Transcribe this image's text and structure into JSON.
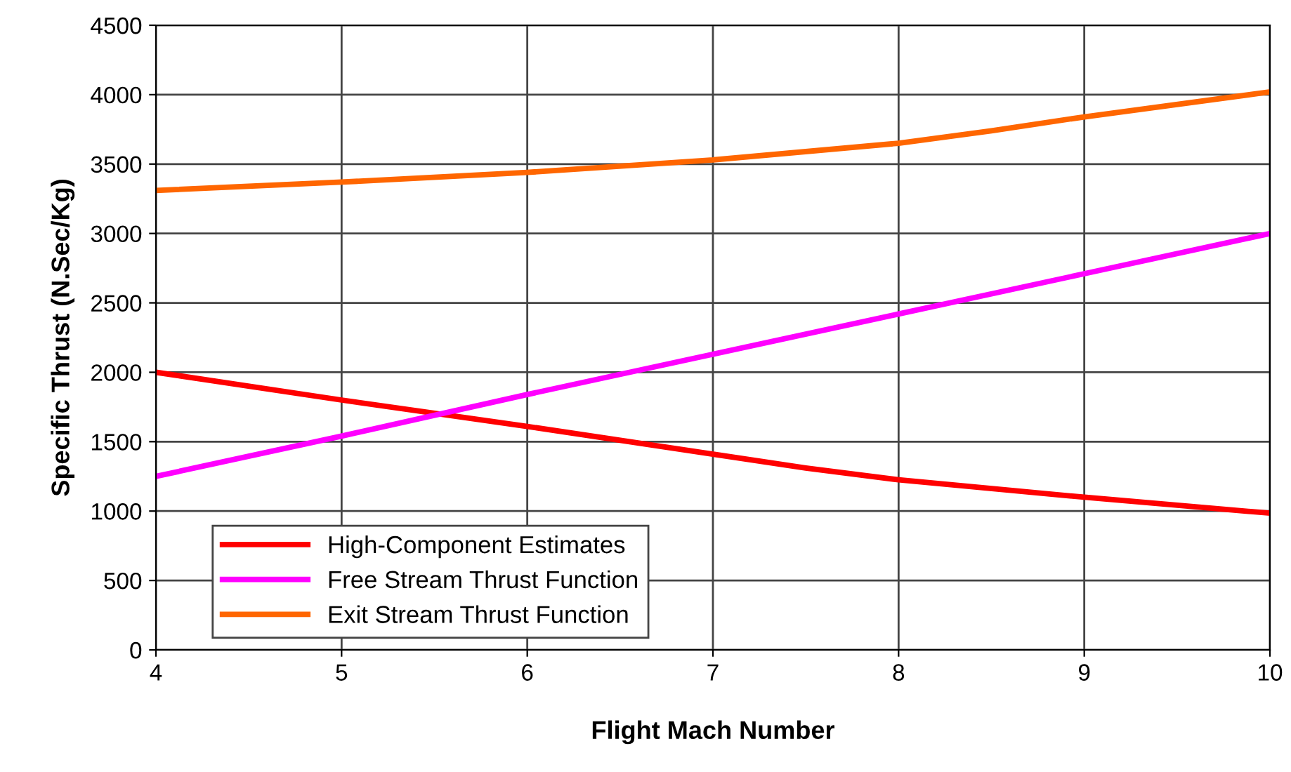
{
  "chart_data": {
    "type": "line",
    "xlabel": "Flight Mach Number",
    "ylabel": "Specific Thrust (N.Sec/Kg)",
    "series": [
      {
        "name": "High-Component Estimates",
        "color": "#ff0000",
        "x": [
          4,
          5,
          6,
          7,
          7.5,
          8,
          9,
          10
        ],
        "values": [
          2000,
          1800,
          1610,
          1410,
          1310,
          1225,
          1100,
          985
        ]
      },
      {
        "name": "Free Stream Thrust Function",
        "color": "#ff00ff",
        "x": [
          4,
          5,
          6,
          7,
          8,
          9,
          10
        ],
        "values": [
          1250,
          1540,
          1840,
          2130,
          2420,
          2710,
          3000
        ]
      },
      {
        "name": "Exit Stream Thrust Function",
        "color": "#ff6600",
        "x": [
          4,
          5,
          6,
          7,
          8,
          8.5,
          9,
          10
        ],
        "values": [
          3310,
          3370,
          3440,
          3530,
          3650,
          3740,
          3840,
          4020
        ]
      }
    ],
    "xlim": [
      4,
      10
    ],
    "xticks": [
      4,
      5,
      6,
      7,
      8,
      9,
      10
    ],
    "ylim": [
      0,
      4500
    ],
    "yticks": [
      0,
      500,
      1000,
      1500,
      2000,
      2500,
      3000,
      3500,
      4000,
      4500
    ],
    "grid": true,
    "legend": "bottom left",
    "marker": "none",
    "line_style": "solid"
  }
}
